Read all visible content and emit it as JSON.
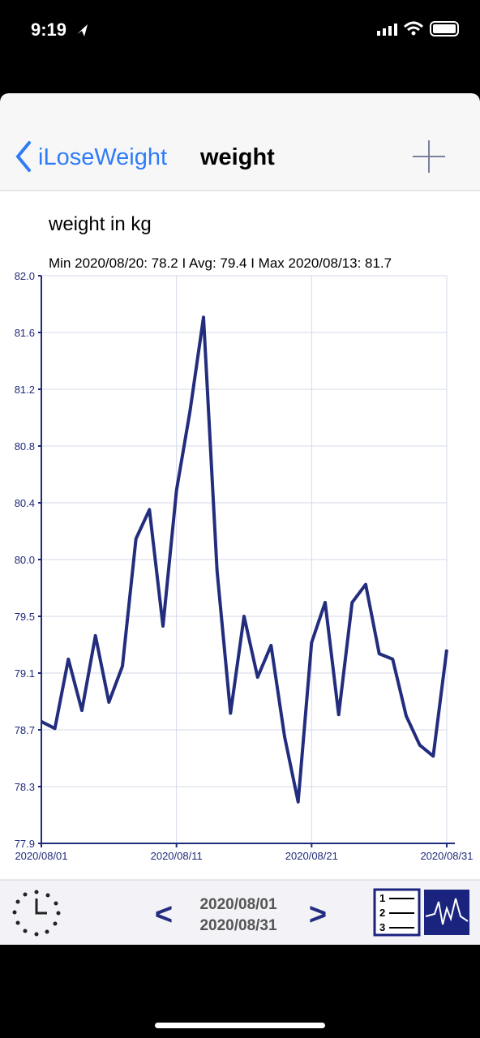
{
  "status_bar": {
    "time": "9:19"
  },
  "nav": {
    "back": "iLoseWeight",
    "title": "weight"
  },
  "footer": {
    "range_start": "2020/08/01",
    "range_end": "2020/08/31",
    "prev": "<",
    "next": ">"
  },
  "chart_data": {
    "type": "line",
    "title": "weight in kg",
    "subtitle": "Min 2020/08/20: 78.2  I  Avg: 79.4  I  Max 2020/08/13: 81.7",
    "x": [
      "2020/08/01",
      "2020/08/02",
      "2020/08/03",
      "2020/08/04",
      "2020/08/05",
      "2020/08/06",
      "2020/08/07",
      "2020/08/08",
      "2020/08/09",
      "2020/08/10",
      "2020/08/11",
      "2020/08/12",
      "2020/08/13",
      "2020/08/14",
      "2020/08/15",
      "2020/08/16",
      "2020/08/17",
      "2020/08/18",
      "2020/08/19",
      "2020/08/20",
      "2020/08/21",
      "2020/08/22",
      "2020/08/23",
      "2020/08/24",
      "2020/08/25",
      "2020/08/26",
      "2020/08/27",
      "2020/08/28",
      "2020/08/29",
      "2020/08/30",
      "2020/08/31"
    ],
    "series": [
      {
        "name": "weight",
        "color": "#232d7e",
        "values": [
          78.78,
          78.73,
          79.23,
          78.86,
          79.4,
          78.92,
          79.18,
          80.1,
          80.31,
          79.47,
          80.45,
          81.02,
          81.7,
          79.87,
          78.84,
          79.54,
          79.1,
          79.33,
          78.67,
          78.2,
          79.35,
          79.64,
          78.83,
          79.64,
          79.77,
          79.27,
          79.23,
          78.82,
          78.61,
          78.53,
          79.3
        ]
      }
    ],
    "xlim": [
      "2020/08/01",
      "2020/08/31"
    ],
    "xticks": [
      "2020/08/01",
      "2020/08/11",
      "2020/08/21",
      "2020/08/31"
    ],
    "ylim": [
      77.9,
      82.0
    ],
    "yticks": [
      {
        "value": 77.9,
        "label": "77.9"
      },
      {
        "value": 78.31,
        "label": "78.3"
      },
      {
        "value": 78.72,
        "label": "78.7"
      },
      {
        "value": 79.13,
        "label": "79.1"
      },
      {
        "value": 79.54,
        "label": "79.5"
      },
      {
        "value": 79.95,
        "label": "80.0"
      },
      {
        "value": 80.36,
        "label": "80.4"
      },
      {
        "value": 80.77,
        "label": "80.8"
      },
      {
        "value": 81.18,
        "label": "81.2"
      },
      {
        "value": 81.59,
        "label": "81.6"
      },
      {
        "value": 82.0,
        "label": "82.0"
      }
    ],
    "grid": true
  }
}
